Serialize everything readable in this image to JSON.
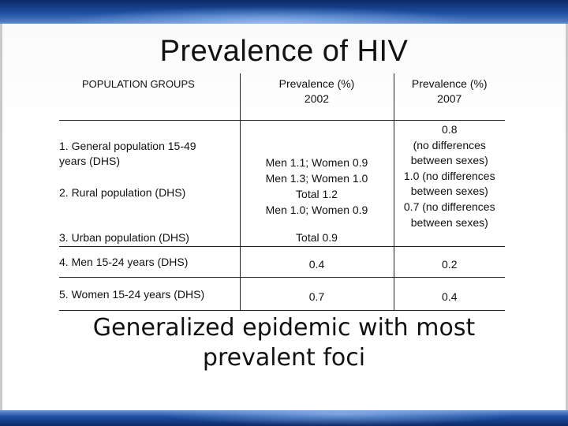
{
  "slide": {
    "title": "Prevalence of HIV",
    "subtitle_lines": [
      "Generalized epidemic with most",
      "prevalent foci"
    ]
  },
  "table": {
    "headers": {
      "groups": "POPULATION GROUPS",
      "p2002_line1": "Prevalence (%)",
      "p2002_line2": "2002",
      "p2007_line1": "Prevalence (%)",
      "p2007_line2": "2007"
    },
    "groups": [
      {
        "line1": "1. General population 15-49",
        "line2": "years (DHS)"
      },
      {
        "label": "2. Rural population (DHS)"
      },
      {
        "label": "3. Urban population (DHS)"
      },
      {
        "label": "4. Men 15-24 years (DHS)"
      },
      {
        "label": "5. Women 15-24 years  (DHS)"
      }
    ],
    "prevalence_2002": [
      "Men 1.1; Women 0.9",
      "Men  1.3; Women 1.0",
      "Total 1.2",
      "Men 1.0; Women 0.9",
      "Total 0.9",
      "0.4",
      "0.7"
    ],
    "prevalence_2007": [
      "0.8",
      "(no differences",
      "between sexes)",
      "1.0 (no differences",
      "between sexes)",
      "0.7 (no differences",
      "between sexes)",
      "0.2",
      "0.4"
    ]
  },
  "colors": {
    "band_dark": "#0c2a66",
    "band_mid": "#1d4fa3",
    "frame_gray": "#c9c9c9"
  }
}
